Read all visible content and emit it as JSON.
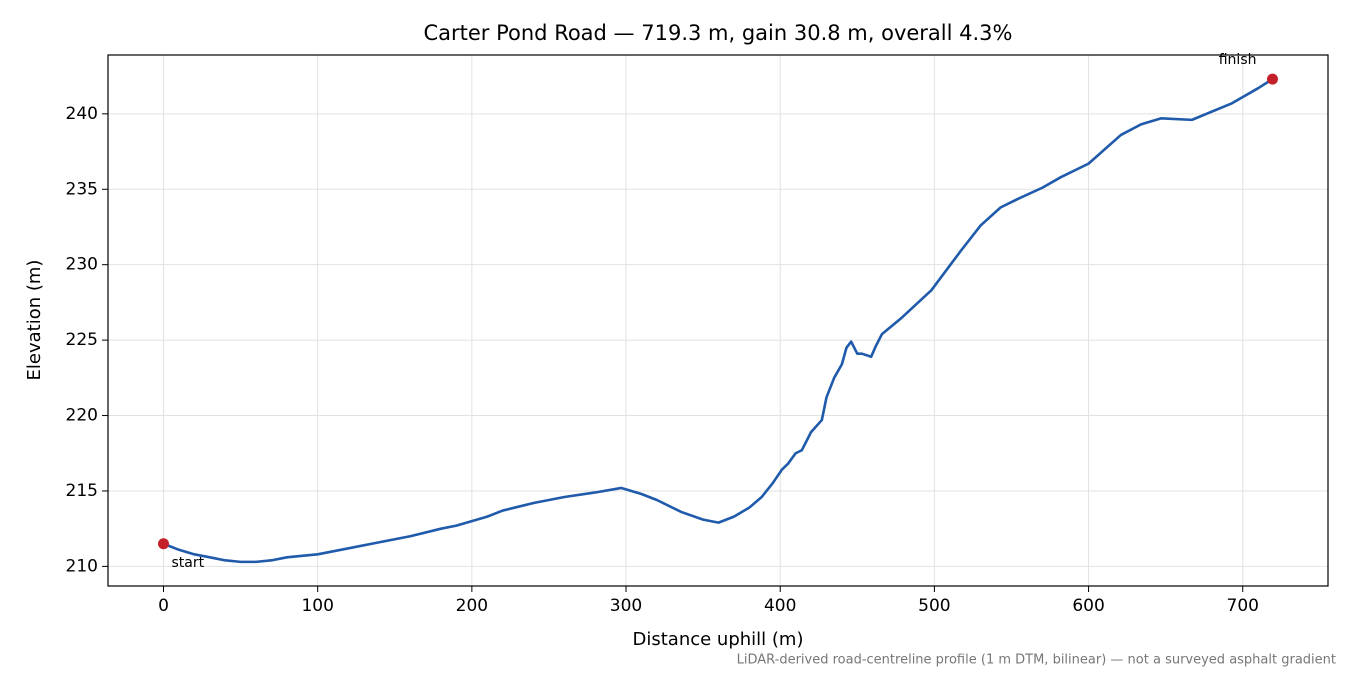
{
  "chart_data": {
    "type": "line",
    "title": "Carter Pond Road — 719.3 m, gain 30.8 m, overall 4.3%",
    "x_label": "Distance uphill (m)",
    "y_label": "Elevation (m)",
    "footnote": "LiDAR-derived road-centreline profile (1 m DTM, bilinear) — not a surveyed asphalt gradient",
    "start_label": "start",
    "finish_label": "finish",
    "x": [
      0,
      10,
      20,
      30,
      40,
      50,
      60,
      70,
      80,
      90,
      100,
      110,
      120,
      140,
      160,
      180,
      190,
      200,
      210,
      220,
      240,
      260,
      280,
      297,
      310,
      320,
      336,
      350,
      360,
      370,
      380,
      388,
      395,
      401,
      405,
      410,
      414,
      420,
      427,
      430,
      435,
      440,
      443,
      446,
      450,
      453,
      459,
      462,
      466,
      479,
      498,
      517,
      530,
      543,
      555,
      570,
      582,
      600,
      621,
      634,
      647,
      667,
      693,
      710,
      719.3
    ],
    "values": [
      211.5,
      211.1,
      210.8,
      210.6,
      210.4,
      210.3,
      210.3,
      210.4,
      210.6,
      210.7,
      210.8,
      211.0,
      211.2,
      211.6,
      212.0,
      212.5,
      212.7,
      213.0,
      213.3,
      213.7,
      214.2,
      214.6,
      214.9,
      215.2,
      214.8,
      214.4,
      213.6,
      213.1,
      212.9,
      213.3,
      213.9,
      214.6,
      215.5,
      216.4,
      216.8,
      217.5,
      217.7,
      218.9,
      219.7,
      221.2,
      222.5,
      223.4,
      224.5,
      224.9,
      224.1,
      224.1,
      223.9,
      224.6,
      225.4,
      226.5,
      228.3,
      230.9,
      232.6,
      233.8,
      234.4,
      235.1,
      235.8,
      236.7,
      238.6,
      239.3,
      239.7,
      239.6,
      240.7,
      241.7,
      242.3
    ],
    "color": "#1f5aab",
    "marker_color": "#c42029",
    "xlim": [
      -36,
      755.3
    ],
    "ylim": [
      208.7,
      243.9
    ],
    "xticks": [
      0,
      100,
      200,
      300,
      400,
      500,
      600,
      700
    ],
    "yticks": [
      210,
      215,
      220,
      225,
      230,
      235,
      240
    ],
    "grid": true
  }
}
